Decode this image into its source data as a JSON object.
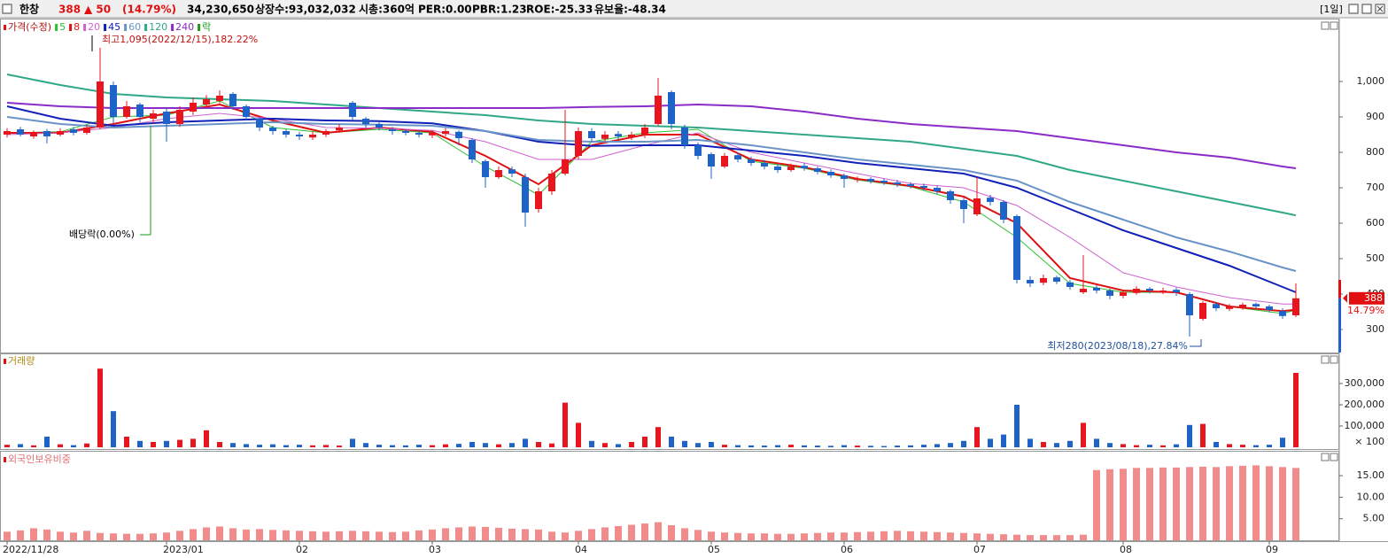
{
  "header": {
    "name": "한창",
    "price": "388",
    "change": "▲ 50",
    "change_pct": "(14.79%)",
    "volume": "34,230,650",
    "listed": "상장수:93,032,032",
    "market_cap": "시총:360억",
    "per": "PER:0.00",
    "pbr": "PBR:1.23",
    "roe": "ROE:-25.33",
    "reserve": "유보율:-48.34",
    "period": "[1일]"
  },
  "chart_data": [
    {
      "type": "candlestick",
      "title": "가격(수정)",
      "dividend_marker_label": "락",
      "categories": [
        "2022/11/28",
        null,
        null,
        null,
        null,
        null,
        null,
        null,
        null,
        null,
        null,
        null,
        "2023/01",
        null,
        null,
        null,
        null,
        null,
        null,
        null,
        null,
        null,
        "02",
        null,
        null,
        null,
        null,
        null,
        null,
        null,
        null,
        null,
        "03",
        null,
        null,
        null,
        null,
        null,
        null,
        null,
        null,
        null,
        null,
        "04",
        null,
        null,
        null,
        null,
        null,
        null,
        null,
        null,
        null,
        "05",
        null,
        null,
        null,
        null,
        null,
        null,
        null,
        null,
        null,
        "06",
        null,
        null,
        null,
        null,
        null,
        null,
        null,
        null,
        null,
        "07",
        null,
        null,
        null,
        null,
        null,
        null,
        null,
        null,
        null,
        null,
        "08",
        null,
        null,
        null,
        null,
        null,
        null,
        null,
        null,
        null,
        null,
        "09",
        null,
        null
      ],
      "open": [
        850,
        865,
        845,
        860,
        850,
        865,
        855,
        870,
        990,
        900,
        935,
        895,
        915,
        880,
        915,
        935,
        945,
        965,
        930,
        895,
        870,
        860,
        850,
        842,
        850,
        862,
        940,
        895,
        880,
        865,
        860,
        855,
        848,
        852,
        858,
        835,
        775,
        730,
        752,
        730,
        640,
        690,
        740,
        790,
        860,
        838,
        852,
        843,
        850,
        880,
        970,
        870,
        820,
        795,
        760,
        792,
        780,
        770,
        760,
        750,
        762,
        755,
        745,
        735,
        722,
        725,
        720,
        715,
        710,
        705,
        700,
        690,
        665,
        625,
        672,
        660,
        620,
        440,
        432,
        447,
        433,
        405,
        418,
        410,
        395,
        403,
        415,
        405,
        412,
        400,
        330,
        372,
        358,
        362,
        372,
        365,
        352,
        340
      ],
      "high": [
        868,
        872,
        862,
        866,
        868,
        872,
        878,
        1095,
        1000,
        945,
        940,
        920,
        925,
        930,
        955,
        962,
        975,
        970,
        935,
        900,
        875,
        865,
        858,
        858,
        866,
        880,
        945,
        900,
        888,
        872,
        866,
        862,
        862,
        868,
        862,
        840,
        780,
        760,
        760,
        740,
        700,
        750,
        920,
        870,
        868,
        860,
        860,
        858,
        880,
        1010,
        975,
        878,
        828,
        800,
        798,
        800,
        788,
        778,
        768,
        768,
        770,
        760,
        752,
        740,
        732,
        730,
        726,
        722,
        716,
        712,
        706,
        695,
        672,
        730,
        680,
        665,
        625,
        450,
        455,
        452,
        440,
        510,
        425,
        415,
        412,
        422,
        420,
        418,
        418,
        405,
        380,
        378,
        372,
        376,
        376,
        370,
        360,
        430
      ],
      "low": [
        842,
        845,
        838,
        825,
        845,
        848,
        850,
        865,
        880,
        895,
        885,
        880,
        830,
        872,
        905,
        925,
        938,
        920,
        890,
        860,
        850,
        842,
        835,
        835,
        843,
        855,
        890,
        870,
        862,
        850,
        848,
        842,
        840,
        845,
        820,
        770,
        700,
        725,
        730,
        590,
        630,
        680,
        735,
        780,
        830,
        830,
        835,
        835,
        840,
        875,
        865,
        810,
        780,
        725,
        755,
        772,
        762,
        752,
        742,
        745,
        748,
        738,
        728,
        700,
        715,
        712,
        708,
        702,
        698,
        692,
        682,
        655,
        600,
        620,
        650,
        600,
        430,
        420,
        425,
        428,
        412,
        400,
        402,
        385,
        388,
        398,
        402,
        400,
        395,
        280,
        325,
        352,
        352,
        356,
        358,
        348,
        330,
        335
      ],
      "close": [
        860,
        850,
        855,
        845,
        860,
        855,
        870,
        1000,
        900,
        930,
        900,
        910,
        880,
        920,
        940,
        950,
        960,
        930,
        900,
        870,
        860,
        850,
        845,
        850,
        860,
        870,
        900,
        880,
        870,
        860,
        855,
        850,
        855,
        860,
        840,
        780,
        730,
        750,
        740,
        630,
        690,
        740,
        780,
        860,
        840,
        850,
        845,
        850,
        870,
        960,
        880,
        820,
        790,
        760,
        790,
        780,
        770,
        760,
        750,
        760,
        755,
        745,
        735,
        725,
        725,
        718,
        715,
        710,
        705,
        700,
        690,
        665,
        640,
        670,
        660,
        610,
        440,
        430,
        445,
        435,
        420,
        415,
        410,
        395,
        405,
        415,
        410,
        410,
        405,
        340,
        375,
        360,
        365,
        370,
        365,
        355,
        338,
        388
      ],
      "up_color": "#e8141e",
      "down_color": "#1e64c8",
      "ylim": [
        235,
        1175
      ],
      "yticks": [
        300,
        400,
        500,
        600,
        700,
        800,
        900,
        {
          "value": 1000,
          "label": "1,000"
        }
      ],
      "series": [
        {
          "name": "5",
          "color": "#2ec02e",
          "width": 1,
          "x": [
            0,
            4,
            8,
            12,
            16,
            20,
            24,
            28,
            32,
            36,
            40,
            44,
            48,
            52,
            56,
            60,
            64,
            68,
            72,
            76,
            80,
            84,
            88,
            92,
            96,
            97
          ],
          "values": [
            855,
            858,
            900,
            905,
            945,
            870,
            855,
            865,
            855,
            760,
            680,
            830,
            855,
            865,
            775,
            755,
            722,
            703,
            660,
            560,
            430,
            405,
            405,
            365,
            345,
            355
          ]
        },
        {
          "name": "8",
          "color": "#e01010",
          "width": 2,
          "x": [
            0,
            4,
            8,
            12,
            16,
            20,
            24,
            28,
            32,
            36,
            40,
            44,
            48,
            52,
            56,
            60,
            64,
            68,
            72,
            76,
            80,
            84,
            88,
            92,
            96,
            97
          ],
          "values": [
            855,
            855,
            880,
            910,
            935,
            890,
            855,
            870,
            858,
            790,
            710,
            820,
            850,
            850,
            780,
            758,
            725,
            705,
            675,
            600,
            445,
            410,
            405,
            365,
            352,
            356
          ]
        },
        {
          "name": "20",
          "color": "#d060d0",
          "width": 1,
          "x": [
            0,
            4,
            8,
            12,
            16,
            20,
            24,
            28,
            32,
            36,
            40,
            44,
            48,
            52,
            56,
            60,
            64,
            68,
            72,
            76,
            80,
            84,
            88,
            92,
            96,
            97
          ],
          "values": [
            850,
            855,
            870,
            895,
            910,
            895,
            870,
            868,
            862,
            830,
            780,
            780,
            820,
            855,
            800,
            770,
            740,
            712,
            700,
            650,
            560,
            460,
            420,
            390,
            372,
            372
          ]
        },
        {
          "name": "45",
          "color": "#1020b8",
          "width": 2,
          "x": [
            0,
            4,
            8,
            12,
            16,
            20,
            24,
            28,
            32,
            36,
            40,
            44,
            48,
            52,
            56,
            60,
            64,
            68,
            72,
            76,
            80,
            84,
            88,
            92,
            96,
            97
          ],
          "values": [
            930,
            895,
            875,
            885,
            890,
            895,
            890,
            888,
            882,
            860,
            830,
            818,
            820,
            820,
            805,
            790,
            770,
            755,
            740,
            700,
            640,
            580,
            530,
            480,
            420,
            405
          ]
        },
        {
          "name": "60",
          "color": "#6a94c8",
          "width": 2,
          "x": [
            0,
            4,
            8,
            12,
            16,
            20,
            24,
            28,
            32,
            36,
            40,
            44,
            48,
            52,
            56,
            60,
            64,
            68,
            72,
            76,
            80,
            84,
            88,
            92,
            96,
            97
          ],
          "values": [
            900,
            880,
            870,
            875,
            880,
            885,
            880,
            878,
            875,
            860,
            835,
            830,
            830,
            835,
            820,
            800,
            780,
            765,
            750,
            720,
            660,
            610,
            560,
            520,
            475,
            465
          ]
        },
        {
          "name": "120",
          "color": "#30a888",
          "width": 2,
          "x": [
            0,
            4,
            8,
            12,
            16,
            20,
            24,
            28,
            32,
            36,
            40,
            44,
            48,
            52,
            56,
            60,
            64,
            68,
            72,
            76,
            80,
            84,
            88,
            92,
            96,
            97
          ],
          "values": [
            1020,
            990,
            965,
            955,
            950,
            945,
            935,
            925,
            915,
            905,
            890,
            880,
            875,
            870,
            860,
            850,
            840,
            830,
            810,
            790,
            750,
            720,
            690,
            660,
            630,
            622
          ]
        },
        {
          "name": "240",
          "color": "#8a2cc8",
          "width": 2,
          "x": [
            0,
            4,
            8,
            12,
            16,
            20,
            24,
            28,
            32,
            36,
            40,
            44,
            48,
            52,
            56,
            60,
            64,
            68,
            72,
            76,
            80,
            84,
            88,
            92,
            96,
            97
          ],
          "values": [
            940,
            930,
            925,
            925,
            925,
            925,
            925,
            925,
            925,
            925,
            925,
            928,
            930,
            935,
            930,
            915,
            895,
            880,
            870,
            860,
            840,
            820,
            800,
            785,
            760,
            755
          ]
        }
      ],
      "annotations": [
        "최고1,095(2022/12/15),182.22%",
        "배당락(0.00%)",
        "최저280(2023/08/18),27.84%"
      ],
      "last_price_label": "388",
      "last_change_label": "14.79%"
    },
    {
      "type": "bar",
      "title": "거래량",
      "unit_label": "× 100",
      "values": [
        12000,
        15000,
        9000,
        50000,
        14000,
        10000,
        18000,
        370000,
        170000,
        50000,
        30000,
        25000,
        30000,
        35000,
        40000,
        80000,
        25000,
        20000,
        15000,
        12000,
        14000,
        10000,
        12000,
        9000,
        11000,
        8000,
        40000,
        20000,
        12000,
        10000,
        9000,
        12000,
        10000,
        14000,
        16000,
        25000,
        20000,
        14000,
        20000,
        40000,
        25000,
        18000,
        210000,
        115000,
        30000,
        20000,
        15000,
        25000,
        50000,
        95000,
        50000,
        30000,
        20000,
        25000,
        12000,
        10000,
        9000,
        8000,
        10000,
        12000,
        9000,
        8000,
        7000,
        10000,
        8000,
        7000,
        6000,
        8000,
        9000,
        12000,
        15000,
        20000,
        30000,
        95000,
        40000,
        60000,
        200000,
        40000,
        25000,
        20000,
        30000,
        115000,
        40000,
        20000,
        15000,
        10000,
        12000,
        9000,
        14000,
        105000,
        110000,
        25000,
        15000,
        12000,
        10000,
        12000,
        45000,
        350000
      ],
      "ylim": [
        0,
        400000
      ],
      "yticks": [
        {
          "value": 100000,
          "label": "100,000"
        },
        {
          "value": 200000,
          "label": "200,000"
        },
        {
          "value": 300000,
          "label": "300,000"
        }
      ]
    },
    {
      "type": "bar",
      "title": "외국인보유비중",
      "color": "#f08c8c",
      "values": [
        2.0,
        2.3,
        2.8,
        2.5,
        2.0,
        1.8,
        2.2,
        1.7,
        1.6,
        1.5,
        1.5,
        1.6,
        1.8,
        2.2,
        2.6,
        3.0,
        3.2,
        2.8,
        2.5,
        2.6,
        2.4,
        2.3,
        2.2,
        2.1,
        2.0,
        2.1,
        2.2,
        2.1,
        2.0,
        1.9,
        2.0,
        2.3,
        2.5,
        2.8,
        3.0,
        3.2,
        3.1,
        2.9,
        2.7,
        2.6,
        2.5,
        2.0,
        1.8,
        2.2,
        2.6,
        3.0,
        3.3,
        3.6,
        3.9,
        4.2,
        3.5,
        2.8,
        2.4,
        2.0,
        1.8,
        1.7,
        1.6,
        1.6,
        1.5,
        1.5,
        1.6,
        1.7,
        1.8,
        1.8,
        1.9,
        2.0,
        2.1,
        2.2,
        2.1,
        2.0,
        1.9,
        1.8,
        1.7,
        1.6,
        1.5,
        1.4,
        1.3,
        1.2,
        1.2,
        1.2,
        1.2,
        1.3,
        16.3,
        16.5,
        16.6,
        16.8,
        16.8,
        16.9,
        16.9,
        17.0,
        17.1,
        17.0,
        17.2,
        17.3,
        17.4,
        17.2,
        17.0,
        16.8
      ],
      "ylim": [
        0,
        18.3
      ],
      "yticks": [
        {
          "value": 5,
          "label": "5.00"
        },
        {
          "value": 10,
          "label": "10.00"
        },
        {
          "value": 15,
          "label": "15.00"
        }
      ]
    }
  ]
}
